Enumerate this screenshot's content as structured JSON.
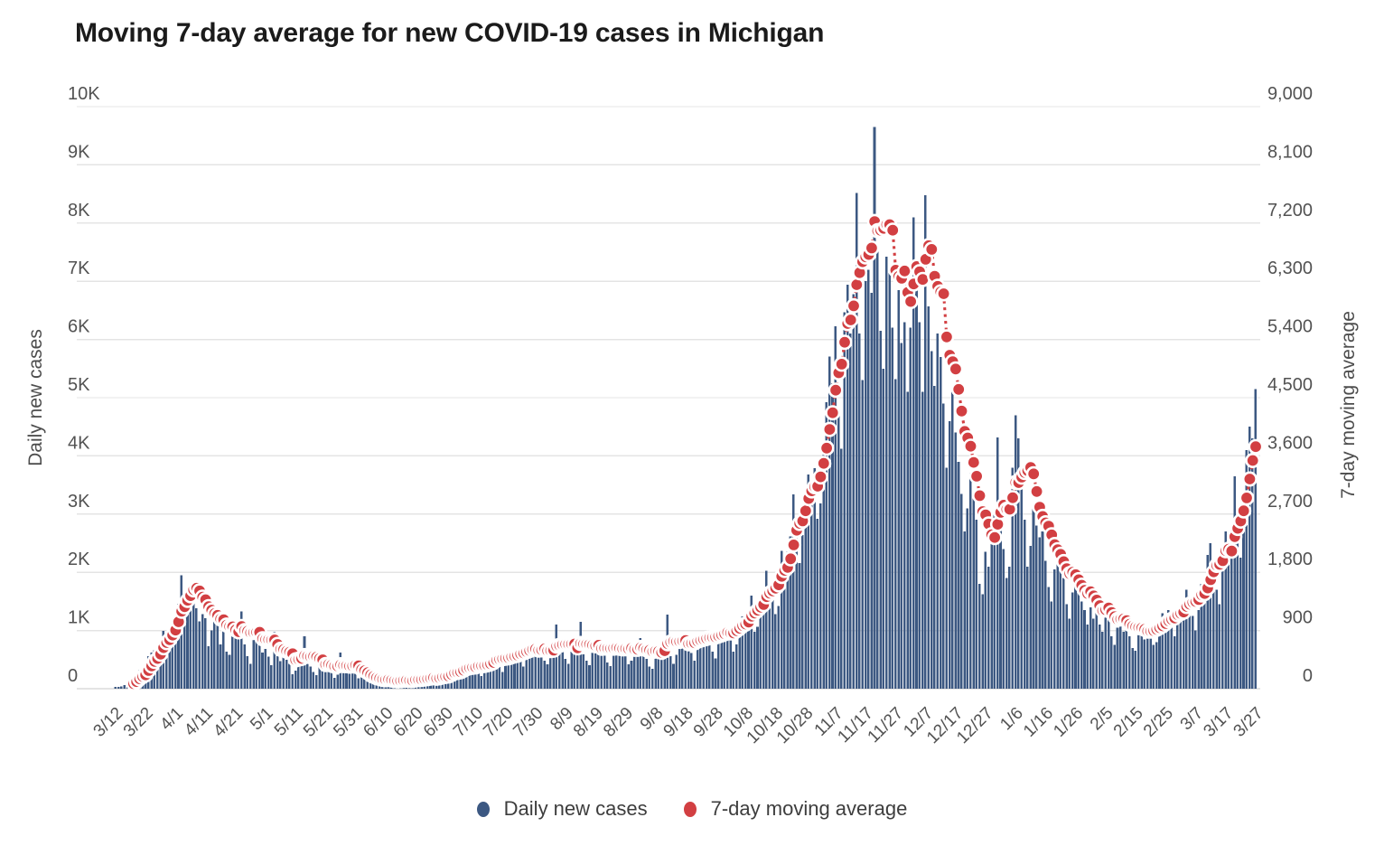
{
  "title": "Moving 7-day average for new COVID-19 cases in Michigan",
  "legend": {
    "items": [
      {
        "label": "Daily new cases",
        "color": "#3c5882"
      },
      {
        "label": "7-day moving average",
        "color": "#d23f42"
      }
    ]
  },
  "colors": {
    "bar": "#3c5882",
    "avg": "#d23f42",
    "avg_marker_stroke": "#ffffff",
    "grid": "#e4e4e4",
    "baseline": "#c9c9c9",
    "tick_text": "#525252",
    "title_text": "#1b1b1b"
  },
  "chart_data": {
    "type": "bar",
    "title": "Moving 7-day average for new COVID-19 cases in Michigan",
    "grid": true,
    "legend_position": "bottom",
    "x_tick_labels": [
      "3/12",
      "3/22",
      "4/1",
      "4/11",
      "4/21",
      "5/1",
      "5/11",
      "5/21",
      "5/31",
      "6/10",
      "6/20",
      "6/30",
      "7/10",
      "7/20",
      "7/30",
      "8/9",
      "8/19",
      "8/29",
      "9/8",
      "9/18",
      "9/28",
      "10/8",
      "10/18",
      "10/28",
      "11/7",
      "11/17",
      "11/27",
      "12/7",
      "12/17",
      "12/27",
      "1/6",
      "1/16",
      "1/26",
      "2/5",
      "2/15",
      "2/25",
      "3/7",
      "3/17",
      "3/27"
    ],
    "x_days_per_tick": 10,
    "left_axis": {
      "label": "Daily new cases",
      "max": 10000,
      "ticks": [
        "0",
        "1K",
        "2K",
        "3K",
        "4K",
        "5K",
        "6K",
        "7K",
        "8K",
        "9K",
        "10K"
      ]
    },
    "right_axis": {
      "label": "7-day moving average",
      "max": 9000,
      "ticks": [
        "0",
        "900",
        "1,800",
        "2,700",
        "3,600",
        "4,500",
        "5,400",
        "6,300",
        "7,200",
        "8,100",
        "9,000"
      ]
    },
    "series": [
      {
        "name": "Daily new cases",
        "type": "bar",
        "axis": "left",
        "color": "#3c5882",
        "values": [
          33,
          29,
          40,
          66,
          92,
          120,
          170,
          250,
          330,
          290,
          245,
          560,
          620,
          660,
          565,
          800,
          995,
          790,
          870,
          1120,
          1200,
          1460,
          1950,
          1480,
          1490,
          1370,
          1750,
          1380,
          1160,
          1280,
          1210,
          730,
          1000,
          1370,
          1190,
          760,
          1200,
          635,
          580,
          970,
          1020,
          1000,
          1330,
          760,
          560,
          430,
          980,
          1050,
          1000,
          625,
          680,
          550,
          400,
          980,
          560,
          470,
          600,
          500,
          430,
          250,
          310,
          640,
          550,
          900,
          430,
          380,
          290,
          230,
          480,
          420,
          390,
          450,
          280,
          190,
          240,
          620,
          330,
          380,
          410,
          300,
          260,
          180,
          220,
          200,
          160,
          175,
          140,
          110,
          95,
          130,
          165,
          180,
          120,
          85,
          70,
          125,
          160,
          190,
          140,
          110,
          175,
          90,
          130,
          210,
          240,
          190,
          160,
          110,
          140,
          230,
          260,
          290,
          350,
          320,
          180,
          210,
          390,
          440,
          380,
          410,
          350,
          290,
          220,
          430,
          510,
          480,
          560,
          610,
          380,
          290,
          480,
          550,
          590,
          640,
          700,
          530,
          380,
          620,
          680,
          720,
          660,
          590,
          560,
          480,
          420,
          710,
          750,
          1100,
          680,
          640,
          510,
          430,
          720,
          760,
          680,
          1150,
          590,
          480,
          400,
          650,
          700,
          740,
          810,
          620,
          450,
          390,
          680,
          730,
          690,
          750,
          640,
          420,
          480,
          560,
          730,
          870,
          640,
          510,
          380,
          340,
          620,
          690,
          750,
          820,
          1270,
          560,
          430,
          580,
          720,
          800,
          860,
          920,
          610,
          480,
          760,
          830,
          890,
          950,
          1010,
          640,
          520,
          870,
          940,
          1020,
          1090,
          960,
          640,
          760,
          1120,
          1240,
          1180,
          1310,
          1600,
          980,
          1060,
          1450,
          1530,
          2030,
          1690,
          1840,
          1280,
          1420,
          2370,
          2180,
          2350,
          2620,
          3340,
          2870,
          2160,
          2640,
          3270,
          3680,
          3450,
          3790,
          2920,
          3180,
          4100,
          4920,
          5710,
          5250,
          6230,
          4800,
          4120,
          6470,
          6940,
          6100,
          6780,
          8520,
          6100,
          5300,
          7000,
          7200,
          6800,
          9650,
          7520,
          6150,
          5500,
          7420,
          7190,
          6200,
          5320,
          6850,
          5940,
          6300,
          5100,
          6200,
          8100,
          7200,
          6300,
          5100,
          8480,
          6570,
          5800,
          5200,
          6100,
          5700,
          4900,
          3800,
          4600,
          5100,
          4400,
          3900,
          3350,
          2700,
          3100,
          3700,
          3350,
          2900,
          1800,
          1620,
          2350,
          2100,
          2550,
          3050,
          4320,
          3100,
          2400,
          1900,
          2100,
          3800,
          4700,
          4300,
          3700,
          2900,
          2100,
          2450,
          3100,
          2800,
          2600,
          2700,
          2200,
          1750,
          1500,
          2050,
          2250,
          2100,
          1900,
          1450,
          1200,
          1650,
          1800,
          1700,
          1500,
          1350,
          1100,
          1400,
          1200,
          1350,
          1100,
          980,
          1420,
          1300,
          900,
          750,
          1050,
          1150,
          980,
          1250,
          900,
          700,
          650,
          980,
          1100,
          850,
          1050,
          900,
          750,
          800,
          1150,
          1300,
          1100,
          1350,
          1050,
          900,
          1150,
          1300,
          1450,
          1700,
          1600,
          1250,
          1000,
          1350,
          1800,
          1600,
          2300,
          2500,
          2100,
          1700,
          1450,
          2200,
          2700,
          2450,
          2300,
          3650,
          2600,
          2250,
          3300,
          4100,
          4500,
          4300,
          5150
        ]
      },
      {
        "name": "7-day moving average",
        "type": "dotted_line_with_markers",
        "axis": "right",
        "color": "#d23f42",
        "marker_stroke": "#ffffff",
        "derivation": "trailing 7-day mean of the Daily new cases values"
      }
    ]
  }
}
